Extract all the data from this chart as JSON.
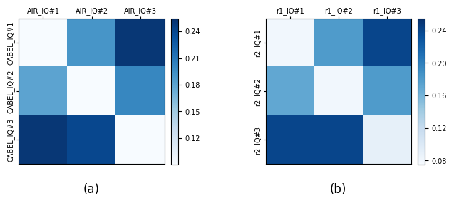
{
  "matrix_a": [
    [
      0.09,
      0.19,
      0.25
    ],
    [
      0.18,
      0.09,
      0.2
    ],
    [
      0.25,
      0.24,
      0.09
    ]
  ],
  "matrix_b": [
    [
      0.08,
      0.18,
      0.24
    ],
    [
      0.17,
      0.08,
      0.18
    ],
    [
      0.24,
      0.24,
      0.09
    ]
  ],
  "xlabel_a": [
    "AIR_IQ#1",
    "AIR_IQ#2",
    "AIR_IQ#3"
  ],
  "ylabel_a": [
    "CABEL_IQ#1",
    "CABEL_IQ#2",
    "CABEL_IQ#3"
  ],
  "xlabel_b": [
    "r1_IQ#1",
    "r1_IQ#2",
    "r1_IQ#3"
  ],
  "ylabel_b": [
    "r2_IQ#1",
    "r2_IQ#2",
    "r2_IQ#3"
  ],
  "label_a": "(a)",
  "label_b": "(b)",
  "vmin_a": 0.09,
  "vmax_a": 0.255,
  "vmin_b": 0.075,
  "vmax_b": 0.255,
  "cbar_ticks_a": [
    0.12,
    0.15,
    0.18,
    0.21,
    0.24
  ],
  "cbar_ticks_b": [
    0.08,
    0.12,
    0.16,
    0.2,
    0.24
  ],
  "colormap": "Blues",
  "background_color": "#ffffff",
  "tick_fontsize": 7,
  "label_fontsize": 12
}
